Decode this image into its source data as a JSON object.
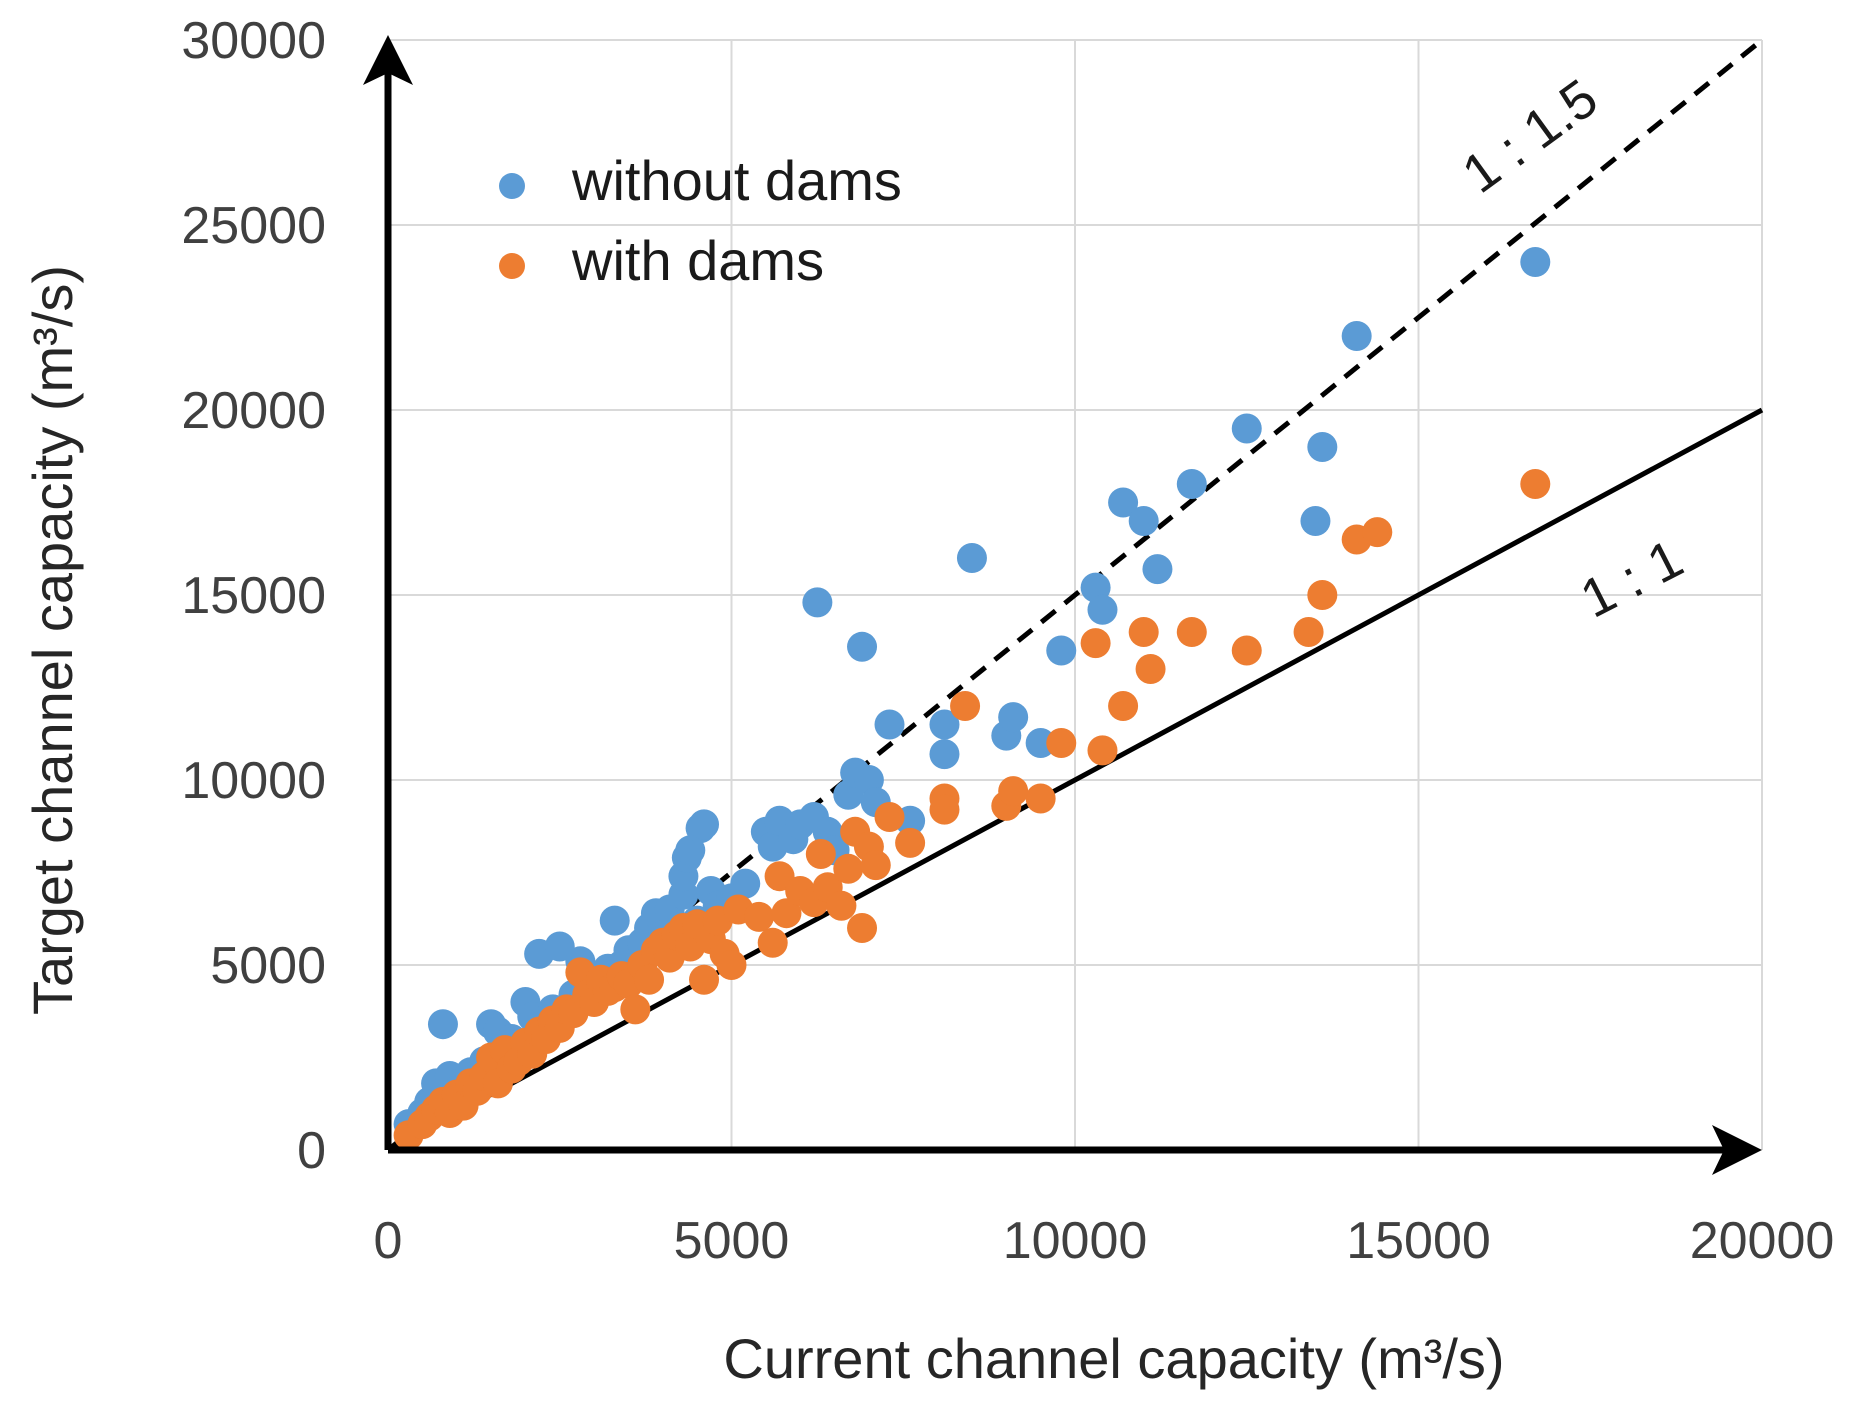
{
  "chart_data": {
    "type": "scatter",
    "title": "",
    "xlabel": "Current channel capacity (m³/s)",
    "ylabel": "Target channel capacity (m³/s)",
    "xlim": [
      0,
      20000
    ],
    "ylim": [
      0,
      30000
    ],
    "x_ticks": [
      0,
      5000,
      10000,
      15000,
      20000
    ],
    "y_ticks": [
      0,
      5000,
      10000,
      15000,
      20000,
      25000,
      30000
    ],
    "x_tick_labels": [
      "0",
      "5000",
      "10000",
      "15000",
      "20000"
    ],
    "y_tick_labels": [
      "0",
      "5000",
      "10000",
      "15000",
      "20000",
      "25000",
      "30000"
    ],
    "grid": true,
    "legend_position": "top-left",
    "reference_lines": [
      {
        "label": "1 : 1.5",
        "slope": 1.5,
        "style": "dashed",
        "color": "#000000"
      },
      {
        "label": "1 : 1",
        "slope": 1.0,
        "style": "solid",
        "color": "#000000"
      }
    ],
    "series": [
      {
        "name": "without dams",
        "color": "#5b9bd5",
        "points": [
          [
            300,
            700
          ],
          [
            500,
            1000
          ],
          [
            600,
            1300
          ],
          [
            700,
            1800
          ],
          [
            800,
            3400
          ],
          [
            900,
            2000
          ],
          [
            1000,
            1600
          ],
          [
            1200,
            2100
          ],
          [
            1400,
            2400
          ],
          [
            1500,
            3400
          ],
          [
            1600,
            3200
          ],
          [
            1800,
            3000
          ],
          [
            1900,
            2600
          ],
          [
            2000,
            4000
          ],
          [
            2100,
            3600
          ],
          [
            2200,
            5300
          ],
          [
            2400,
            3800
          ],
          [
            2500,
            5500
          ],
          [
            2700,
            4200
          ],
          [
            2800,
            5100
          ],
          [
            3000,
            4600
          ],
          [
            3200,
            4900
          ],
          [
            3300,
            6200
          ],
          [
            3400,
            5000
          ],
          [
            3500,
            5400
          ],
          [
            3700,
            5600
          ],
          [
            3800,
            6000
          ],
          [
            3900,
            6400
          ],
          [
            4000,
            5800
          ],
          [
            4100,
            6500
          ],
          [
            4300,
            6900
          ],
          [
            4300,
            7400
          ],
          [
            4350,
            7900
          ],
          [
            4400,
            8100
          ],
          [
            4500,
            6200
          ],
          [
            4550,
            8700
          ],
          [
            4600,
            8800
          ],
          [
            4700,
            7000
          ],
          [
            4800,
            6600
          ],
          [
            5000,
            6800
          ],
          [
            5200,
            7200
          ],
          [
            5500,
            8600
          ],
          [
            5600,
            8200
          ],
          [
            5700,
            8900
          ],
          [
            5900,
            8400
          ],
          [
            6000,
            8800
          ],
          [
            6200,
            9000
          ],
          [
            6250,
            14800
          ],
          [
            6400,
            8600
          ],
          [
            6500,
            8100
          ],
          [
            6700,
            9600
          ],
          [
            6800,
            10200
          ],
          [
            6900,
            13600
          ],
          [
            7000,
            10000
          ],
          [
            7100,
            9400
          ],
          [
            7300,
            11500
          ],
          [
            7600,
            8900
          ],
          [
            8100,
            11500
          ],
          [
            8100,
            10700
          ],
          [
            8500,
            16000
          ],
          [
            9000,
            11200
          ],
          [
            9100,
            11700
          ],
          [
            9500,
            11000
          ],
          [
            9800,
            13500
          ],
          [
            10300,
            15200
          ],
          [
            10400,
            14600
          ],
          [
            10700,
            17500
          ],
          [
            11000,
            17000
          ],
          [
            11200,
            15700
          ],
          [
            11700,
            18000
          ],
          [
            12500,
            19500
          ],
          [
            13500,
            17000
          ],
          [
            13600,
            19000
          ],
          [
            14100,
            22000
          ],
          [
            16700,
            24000
          ]
        ]
      },
      {
        "name": "with dams",
        "color": "#ed7d31",
        "points": [
          [
            300,
            400
          ],
          [
            500,
            700
          ],
          [
            600,
            900
          ],
          [
            700,
            1100
          ],
          [
            800,
            1300
          ],
          [
            900,
            1000
          ],
          [
            1000,
            1500
          ],
          [
            1100,
            1200
          ],
          [
            1200,
            1800
          ],
          [
            1300,
            1600
          ],
          [
            1400,
            2000
          ],
          [
            1500,
            2500
          ],
          [
            1600,
            1800
          ],
          [
            1700,
            2700
          ],
          [
            1800,
            2200
          ],
          [
            1900,
            2400
          ],
          [
            2000,
            2900
          ],
          [
            2100,
            2600
          ],
          [
            2200,
            3200
          ],
          [
            2300,
            3000
          ],
          [
            2400,
            3500
          ],
          [
            2500,
            3300
          ],
          [
            2600,
            3800
          ],
          [
            2700,
            3700
          ],
          [
            2800,
            4800
          ],
          [
            2900,
            4200
          ],
          [
            3000,
            4000
          ],
          [
            3100,
            4600
          ],
          [
            3200,
            4300
          ],
          [
            3300,
            4400
          ],
          [
            3400,
            4700
          ],
          [
            3500,
            4500
          ],
          [
            3600,
            3800
          ],
          [
            3700,
            5000
          ],
          [
            3800,
            4600
          ],
          [
            3900,
            5400
          ],
          [
            4000,
            5600
          ],
          [
            4100,
            5200
          ],
          [
            4200,
            5800
          ],
          [
            4300,
            6000
          ],
          [
            4400,
            5500
          ],
          [
            4500,
            6100
          ],
          [
            4600,
            4600
          ],
          [
            4700,
            5700
          ],
          [
            4800,
            6200
          ],
          [
            4900,
            5300
          ],
          [
            5000,
            5000
          ],
          [
            5100,
            6500
          ],
          [
            5400,
            6300
          ],
          [
            5600,
            5600
          ],
          [
            5700,
            7400
          ],
          [
            5800,
            6400
          ],
          [
            6000,
            7000
          ],
          [
            6200,
            6700
          ],
          [
            6300,
            8000
          ],
          [
            6400,
            7100
          ],
          [
            6600,
            6600
          ],
          [
            6700,
            7600
          ],
          [
            6800,
            8600
          ],
          [
            6900,
            6000
          ],
          [
            7000,
            8200
          ],
          [
            7100,
            7700
          ],
          [
            7300,
            9000
          ],
          [
            7600,
            8300
          ],
          [
            8100,
            9500
          ],
          [
            8100,
            9200
          ],
          [
            8400,
            12000
          ],
          [
            9000,
            9300
          ],
          [
            9100,
            9700
          ],
          [
            9500,
            9500
          ],
          [
            9800,
            11000
          ],
          [
            10300,
            13700
          ],
          [
            10400,
            10800
          ],
          [
            10700,
            12000
          ],
          [
            11000,
            14000
          ],
          [
            11100,
            13000
          ],
          [
            11700,
            14000
          ],
          [
            12500,
            13500
          ],
          [
            13400,
            14000
          ],
          [
            13600,
            15000
          ],
          [
            14100,
            16500
          ],
          [
            14400,
            16700
          ],
          [
            16700,
            18000
          ]
        ]
      }
    ]
  }
}
